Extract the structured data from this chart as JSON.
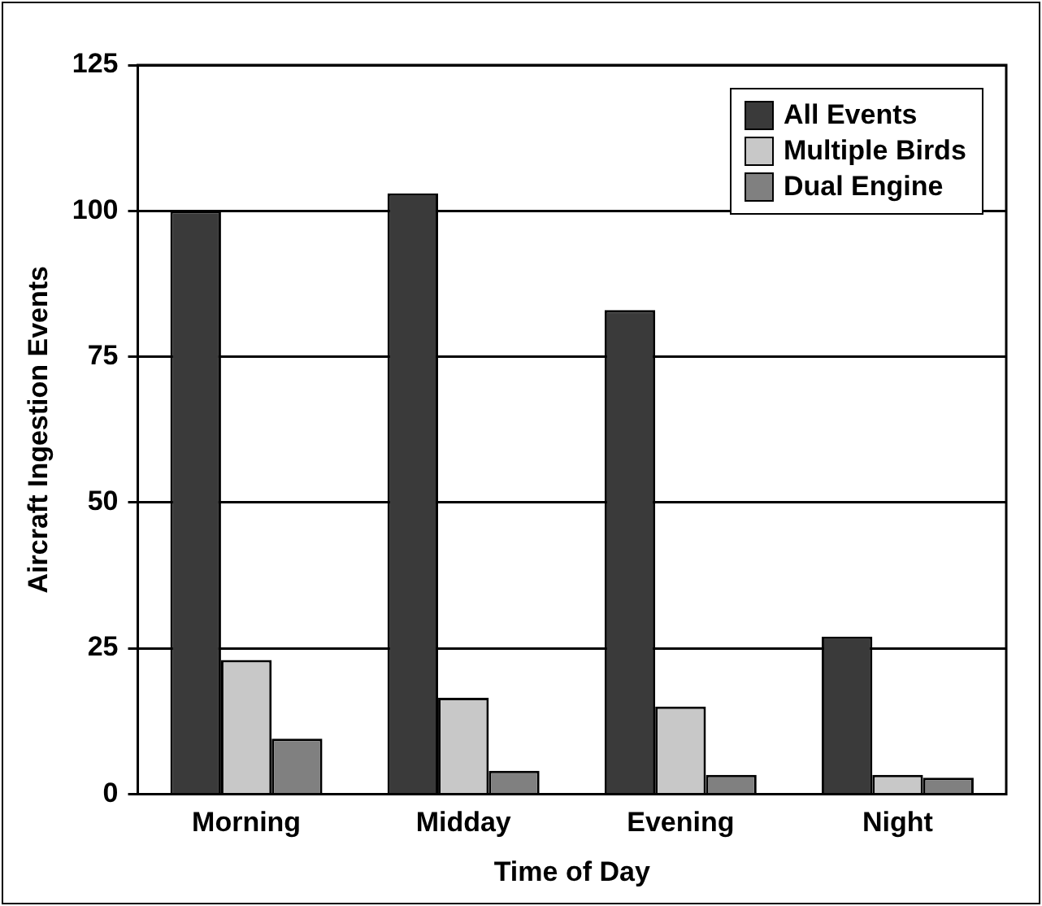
{
  "chart_data": {
    "type": "bar",
    "xlabel": "Time of Day",
    "ylabel": "Aircraft Ingestion Events",
    "categories": [
      "Morning",
      "Midday",
      "Evening",
      "Night"
    ],
    "series": [
      {
        "name": "All Events",
        "color": "#3a3a3a",
        "values": [
          100,
          103,
          83,
          27
        ]
      },
      {
        "name": "Multiple Birds",
        "color": "#c8c8c8",
        "values": [
          23,
          16.5,
          15,
          3.3
        ]
      },
      {
        "name": "Dual Engine",
        "color": "#808080",
        "values": [
          9.5,
          4,
          3.3,
          2.8
        ]
      }
    ],
    "ylim": [
      0,
      125
    ],
    "yticks": [
      0,
      25,
      50,
      75,
      100,
      125
    ],
    "grid": "y",
    "legend": "top right"
  }
}
